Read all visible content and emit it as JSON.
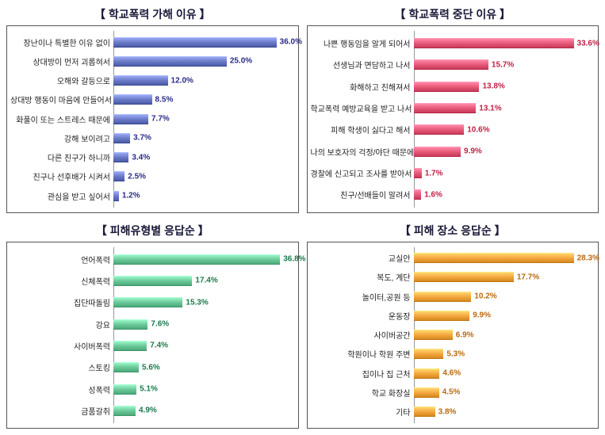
{
  "charts": [
    {
      "title": "【 학교폭력 가해 이유 】",
      "type": "bar",
      "max": 40,
      "bar_color": "#6b7bc7",
      "val_color": "#2a2a8a",
      "items": [
        {
          "label": "장난이나 특별한 이유 없이",
          "value": 36.0,
          "display": "36.0%"
        },
        {
          "label": "상대방이 먼저 괴롭혀서",
          "value": 25.0,
          "display": "25.0%"
        },
        {
          "label": "오해와 갈등으로",
          "value": 12.0,
          "display": "12.0%"
        },
        {
          "label": "상대방 행동이 마음에 안들어서",
          "value": 8.5,
          "display": "8.5%"
        },
        {
          "label": "화풀이 또는 스트레스 때문에",
          "value": 7.7,
          "display": "7.7%"
        },
        {
          "label": "강해 보이려고",
          "value": 3.7,
          "display": "3.7%"
        },
        {
          "label": "다른 친구가 하니까",
          "value": 3.4,
          "display": "3.4%"
        },
        {
          "label": "친구나 선후배가 시켜서",
          "value": 2.5,
          "display": "2.5%"
        },
        {
          "label": "관심을 받고 싶어서",
          "value": 1.2,
          "display": "1.2%"
        }
      ]
    },
    {
      "title": "【 학교폭력 중단 이유 】",
      "type": "bar",
      "max": 38,
      "bar_color": "#e85a7a",
      "val_color": "#c02045",
      "items": [
        {
          "label": "나쁜 행동임을 알게 되어서",
          "value": 33.6,
          "display": "33.6%"
        },
        {
          "label": "선생님과 면담하고 나서",
          "value": 15.7,
          "display": "15.7%"
        },
        {
          "label": "화해하고 친해져서",
          "value": 13.8,
          "display": "13.8%"
        },
        {
          "label": "학교폭력 예방교육을 받고 나서",
          "value": 13.1,
          "display": "13.1%"
        },
        {
          "label": "피해 학생이 싫다고 해서",
          "value": 10.6,
          "display": "10.6%"
        },
        {
          "label": "나의 보호자의 걱정/야단 때문에",
          "value": 9.9,
          "display": "9.9%"
        },
        {
          "label": "경찰에 신고되고 조사를 받아서",
          "value": 1.7,
          "display": "1.7%"
        },
        {
          "label": "친구/선배들이 말려서",
          "value": 1.6,
          "display": "1.6%"
        }
      ]
    },
    {
      "title": "【 피해유형별 응답순 】",
      "type": "bar",
      "max": 40,
      "bar_color": "#6cc99a",
      "val_color": "#1a7a4a",
      "items": [
        {
          "label": "언어폭력",
          "value": 36.8,
          "display": "36.8%"
        },
        {
          "label": "신체폭력",
          "value": 17.4,
          "display": "17.4%"
        },
        {
          "label": "집단따돌림",
          "value": 15.3,
          "display": "15.3%"
        },
        {
          "label": "강요",
          "value": 7.6,
          "display": "7.6%"
        },
        {
          "label": "사이버폭력",
          "value": 7.4,
          "display": "7.4%"
        },
        {
          "label": "스토킹",
          "value": 5.6,
          "display": "5.6%"
        },
        {
          "label": "성폭력",
          "value": 5.1,
          "display": "5.1%"
        },
        {
          "label": "금품갈취",
          "value": 4.9,
          "display": "4.9%"
        }
      ]
    },
    {
      "title": "【 피해 장소 응답순 】",
      "type": "bar",
      "max": 32,
      "bar_color": "#f5a840",
      "val_color": "#b86a10",
      "items": [
        {
          "label": "교실안",
          "value": 28.3,
          "display": "28.3%"
        },
        {
          "label": "복도, 계단",
          "value": 17.7,
          "display": "17.7%"
        },
        {
          "label": "놀이터,공원 등",
          "value": 10.2,
          "display": "10.2%"
        },
        {
          "label": "운동장",
          "value": 9.9,
          "display": "9.9%"
        },
        {
          "label": "사이버공간",
          "value": 6.9,
          "display": "6.9%"
        },
        {
          "label": "학원이나 학원 주변",
          "value": 5.3,
          "display": "5.3%"
        },
        {
          "label": "집이나 집 근처",
          "value": 4.6,
          "display": "4.6%"
        },
        {
          "label": "학교 화장실",
          "value": 4.5,
          "display": "4.5%"
        },
        {
          "label": "기타",
          "value": 3.8,
          "display": "3.8%"
        }
      ]
    }
  ]
}
